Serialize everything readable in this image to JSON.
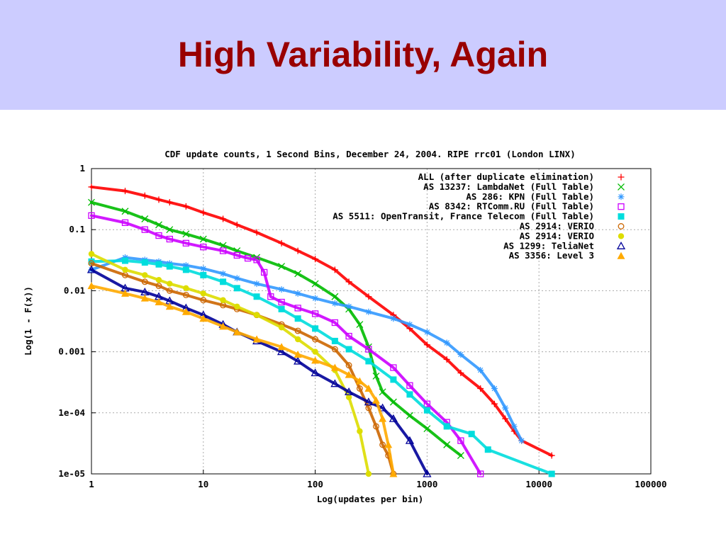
{
  "slide": {
    "title": "High Variability, Again"
  },
  "chart_data": {
    "type": "line",
    "title": "CDF update counts, 1 Second Bins, December 24, 2004.  RIPE rrc01 (London LINX)",
    "xlabel": "Log(updates per bin)",
    "ylabel": "Log(1 - F(x))",
    "x_scale": "log",
    "y_scale": "log",
    "xlim": [
      1,
      100000
    ],
    "ylim": [
      1e-05,
      1
    ],
    "x_ticks": [
      1,
      10,
      100,
      1000,
      10000,
      100000
    ],
    "x_tick_labels": [
      "1",
      "10",
      "100",
      "1000",
      "10000",
      "100000"
    ],
    "y_ticks": [
      1,
      0.1,
      0.01,
      0.001,
      0.0001,
      1e-05
    ],
    "y_tick_labels": [
      "1",
      "0.1",
      "0.01",
      "0.001",
      "1e-04",
      "1e-05"
    ],
    "grid": true,
    "legend_position": "top-right",
    "series": [
      {
        "name": "ALL (after duplicate elimination)",
        "color": "#ff0000",
        "marker": "+",
        "x": [
          1,
          2,
          3,
          4,
          5,
          7,
          10,
          15,
          20,
          30,
          50,
          70,
          100,
          150,
          200,
          300,
          500,
          700,
          1000,
          1500,
          2000,
          3000,
          4000,
          5000,
          6000,
          7000,
          13000
        ],
        "y": [
          0.5,
          0.43,
          0.36,
          0.31,
          0.28,
          0.24,
          0.19,
          0.15,
          0.12,
          0.09,
          0.06,
          0.045,
          0.033,
          0.022,
          0.014,
          0.008,
          0.004,
          0.0024,
          0.0013,
          0.00075,
          0.00045,
          0.00025,
          0.00014,
          8e-05,
          5e-05,
          3.5e-05,
          2e-05
        ]
      },
      {
        "name": "AS 13237: LambdaNet (Full Table)",
        "color": "#00bb00",
        "marker": "x",
        "x": [
          1,
          2,
          3,
          4,
          5,
          7,
          10,
          15,
          20,
          30,
          50,
          70,
          100,
          150,
          200,
          250,
          300,
          350,
          400,
          500,
          700,
          1000,
          1500,
          2000
        ],
        "y": [
          0.28,
          0.2,
          0.15,
          0.12,
          0.1,
          0.085,
          0.07,
          0.055,
          0.045,
          0.035,
          0.025,
          0.019,
          0.013,
          0.008,
          0.005,
          0.0028,
          0.0012,
          0.0004,
          0.00022,
          0.00015,
          9e-05,
          5.5e-05,
          3e-05,
          2e-05
        ]
      },
      {
        "name": "AS 286: KPN (Full Table)",
        "color": "#3399ff",
        "marker": "*",
        "x": [
          1,
          2,
          3,
          4,
          5,
          7,
          10,
          15,
          20,
          30,
          50,
          70,
          100,
          150,
          200,
          300,
          500,
          700,
          1000,
          1500,
          2000,
          3000,
          4000,
          5000,
          6000,
          7000
        ],
        "y": [
          0.022,
          0.035,
          0.032,
          0.03,
          0.028,
          0.026,
          0.023,
          0.019,
          0.016,
          0.013,
          0.0105,
          0.009,
          0.0075,
          0.0062,
          0.0055,
          0.0045,
          0.0035,
          0.0028,
          0.0021,
          0.0014,
          0.0009,
          0.0005,
          0.00025,
          0.00012,
          6e-05,
          3.5e-05
        ]
      },
      {
        "name": "AS 8342: RTComm.RU (Full Table)",
        "color": "#cc00ff",
        "marker": "square",
        "x": [
          1,
          2,
          3,
          4,
          5,
          7,
          10,
          15,
          20,
          25,
          30,
          35,
          40,
          50,
          70,
          100,
          150,
          200,
          300,
          500,
          700,
          1000,
          1500,
          2000,
          3000
        ],
        "y": [
          0.17,
          0.13,
          0.1,
          0.08,
          0.07,
          0.06,
          0.052,
          0.045,
          0.038,
          0.034,
          0.032,
          0.02,
          0.008,
          0.0065,
          0.0052,
          0.0042,
          0.003,
          0.0018,
          0.0011,
          0.00055,
          0.00028,
          0.00014,
          7e-05,
          3.5e-05,
          1e-05
        ]
      },
      {
        "name": "AS 5511: OpenTransit, France Telecom (Full Table)",
        "color": "#00dddd",
        "marker": "filled-square",
        "x": [
          1,
          2,
          3,
          4,
          5,
          7,
          10,
          15,
          20,
          30,
          50,
          70,
          100,
          150,
          200,
          300,
          500,
          700,
          1000,
          1500,
          2500,
          3500,
          13000
        ],
        "y": [
          0.03,
          0.031,
          0.029,
          0.027,
          0.025,
          0.022,
          0.018,
          0.014,
          0.011,
          0.008,
          0.005,
          0.0035,
          0.0024,
          0.0015,
          0.0011,
          0.0007,
          0.00035,
          0.0002,
          0.00011,
          6e-05,
          4.5e-05,
          2.5e-05,
          1e-05
        ]
      },
      {
        "name": "AS 2914: VERIO",
        "color": "#cc6600",
        "marker": "circle",
        "x": [
          1,
          2,
          3,
          4,
          5,
          7,
          10,
          15,
          20,
          30,
          50,
          70,
          100,
          150,
          200,
          250,
          300,
          350,
          400,
          450,
          500
        ],
        "y": [
          0.028,
          0.018,
          0.014,
          0.012,
          0.01,
          0.0085,
          0.007,
          0.0058,
          0.005,
          0.004,
          0.0028,
          0.0022,
          0.0016,
          0.0011,
          0.0006,
          0.00025,
          0.00012,
          6e-05,
          3e-05,
          2e-05,
          1e-05
        ]
      },
      {
        "name": "AS 2914: VERIO",
        "color": "#dddd00",
        "marker": "filled-circle",
        "x": [
          1,
          2,
          3,
          4,
          5,
          7,
          10,
          15,
          20,
          30,
          50,
          70,
          100,
          150,
          200,
          250,
          300
        ],
        "y": [
          0.04,
          0.022,
          0.018,
          0.015,
          0.013,
          0.011,
          0.009,
          0.007,
          0.0055,
          0.004,
          0.0025,
          0.0016,
          0.001,
          0.0005,
          0.00018,
          5e-05,
          1e-05
        ]
      },
      {
        "name": "AS 1299: TeliaNet",
        "color": "#000099",
        "marker": "triangle",
        "x": [
          1,
          2,
          3,
          4,
          5,
          7,
          10,
          15,
          20,
          30,
          50,
          70,
          100,
          150,
          200,
          300,
          400,
          500,
          700,
          1000
        ],
        "y": [
          0.022,
          0.011,
          0.0095,
          0.008,
          0.0068,
          0.0052,
          0.004,
          0.0028,
          0.0021,
          0.0015,
          0.001,
          0.0007,
          0.00045,
          0.0003,
          0.00022,
          0.00015,
          0.00012,
          8e-05,
          3.5e-05,
          1e-05
        ]
      },
      {
        "name": "AS 3356: Level 3",
        "color": "#ffaa00",
        "marker": "filled-triangle",
        "x": [
          1,
          2,
          3,
          4,
          5,
          7,
          10,
          15,
          20,
          30,
          50,
          70,
          100,
          150,
          200,
          250,
          300,
          350,
          400,
          450,
          500
        ],
        "y": [
          0.012,
          0.009,
          0.0075,
          0.0065,
          0.0055,
          0.0045,
          0.0035,
          0.0026,
          0.0021,
          0.0016,
          0.0012,
          0.0009,
          0.00072,
          0.00055,
          0.00042,
          0.00033,
          0.00025,
          0.00016,
          8e-05,
          3e-05,
          1e-05
        ]
      }
    ]
  }
}
